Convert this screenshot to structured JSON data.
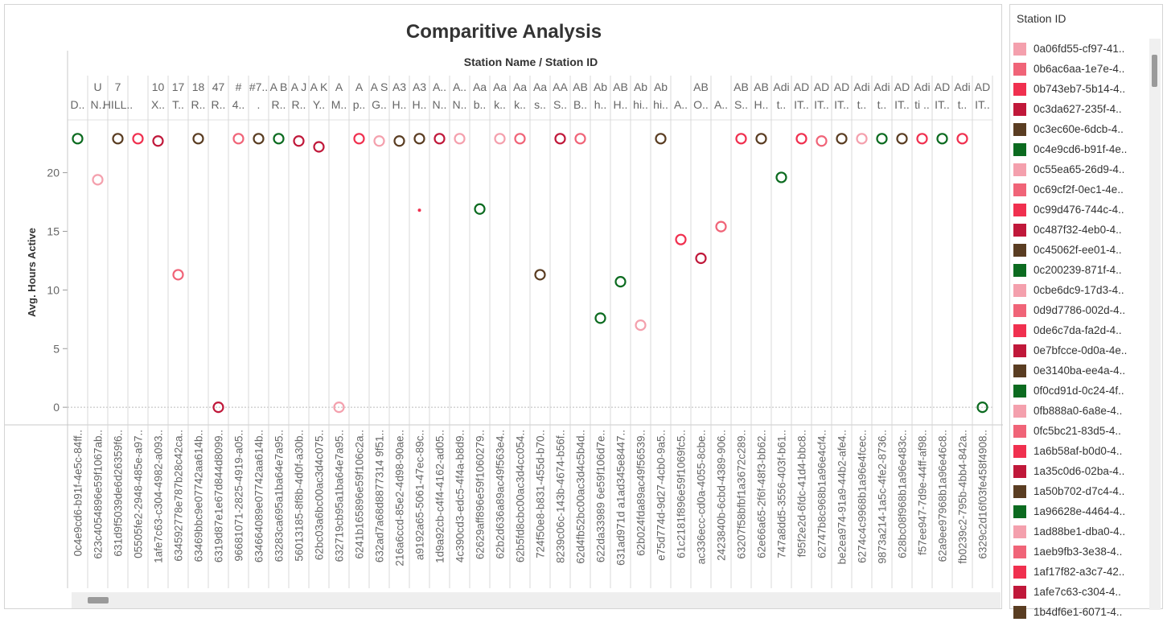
{
  "chart_data": {
    "type": "scatter",
    "title": "Comparitive Analysis",
    "header_label": "Station Name / Station ID",
    "ylabel": "Avg. Hours Active",
    "ylim": [
      -1.5,
      24.5
    ],
    "yticks": [
      0,
      5,
      10,
      15,
      20
    ],
    "columns": [
      {
        "name_top": "",
        "name_bottom": "D..",
        "station_id": "0c4e9cd6-b91f-4e5c-84ff..",
        "value": 22.9,
        "color": "#0c6b20",
        "marker": "circle"
      },
      {
        "name_top": "U",
        "name_bottom": "N..",
        "station_id": "623c4054896e59f1067ab..",
        "value": 19.4,
        "color": "#f4a0ad",
        "marker": "circle"
      },
      {
        "name_top": "7",
        "name_bottom": "HILL..",
        "station_id": "631d9f5039de6d26359f6..",
        "value": 22.9,
        "color": "#5a3d22",
        "marker": "circle"
      },
      {
        "name_top": "",
        "name_bottom": "",
        "station_id": "05505fe2-2948-485e-a97..",
        "value": 22.9,
        "color": "#f0304f",
        "marker": "circle"
      },
      {
        "name_top": "10",
        "name_bottom": "X..",
        "station_id": "1afe7c63-c304-4982-a093..",
        "value": 22.7,
        "color": "#c0183a",
        "marker": "circle"
      },
      {
        "name_top": "17",
        "name_bottom": "T..",
        "station_id": "634592778e787b28c42ca..",
        "value": 11.3,
        "color": "#f06478",
        "marker": "circle"
      },
      {
        "name_top": "18",
        "name_bottom": "R..",
        "station_id": "63469bbc9e07742aa614b..",
        "value": 22.9,
        "color": "#5a3d22",
        "marker": "circle"
      },
      {
        "name_top": "47",
        "name_bottom": "R..",
        "station_id": "6319d87e1e67d844d8099..",
        "value": 0.0,
        "color": "#c0183a",
        "marker": "circle"
      },
      {
        "name_top": "#",
        "name_bottom": "4..",
        "station_id": "96681071-2825-4919-a05..",
        "value": 22.9,
        "color": "#f06478",
        "marker": "circle"
      },
      {
        "name_top": "#7..",
        "name_bottom": ".",
        "station_id": "634664089e07742aa614b..",
        "value": 22.9,
        "color": "#5a3d22",
        "marker": "circle"
      },
      {
        "name_top": "A B",
        "name_bottom": "R..",
        "station_id": "63283ca695a1ba64e7a95..",
        "value": 22.9,
        "color": "#0c6b20",
        "marker": "circle"
      },
      {
        "name_top": "A J",
        "name_bottom": "R..",
        "station_id": "56013185-8f8b-4d0f-a30b..",
        "value": 22.7,
        "color": "#c0183a",
        "marker": "circle"
      },
      {
        "name_top": "A K",
        "name_bottom": "Y..",
        "station_id": "62bc03a6bc00ac3d4c075..",
        "value": 22.2,
        "color": "#c0183a",
        "marker": "circle"
      },
      {
        "name_top": "A",
        "name_bottom": "M..",
        "station_id": "632719cb95a1ba64e7a95..",
        "value": 0.0,
        "color": "#f4a0ad",
        "marker": "circle"
      },
      {
        "name_top": "A",
        "name_bottom": "p..",
        "station_id": "6241b165896e59f106c2a..",
        "value": 22.9,
        "color": "#f0304f",
        "marker": "circle"
      },
      {
        "name_top": "A S",
        "name_bottom": "G..",
        "station_id": "632ad7a68d8877314 9f51..",
        "value": 22.7,
        "color": "#f4a0ad",
        "marker": "circle"
      },
      {
        "name_top": "A3",
        "name_bottom": "H..",
        "station_id": "216a6ccd-85e2-4d98-90ae..",
        "value": 22.7,
        "color": "#5a3d22",
        "marker": "circle"
      },
      {
        "name_top": "A3",
        "name_bottom": "H..",
        "station_id": "a9192a65-5061-47ec-89c..",
        "value": 22.9,
        "color": "#5a3d22",
        "marker": "circle",
        "extra_dot": 16.8,
        "extra_color": "#f0304f"
      },
      {
        "name_top": "A..",
        "name_bottom": "N..",
        "station_id": "1d9a92cb-c4f4-4162-ad05..",
        "value": 22.9,
        "color": "#c0183a",
        "marker": "circle"
      },
      {
        "name_top": "A..",
        "name_bottom": "N..",
        "station_id": "4c390cd3-edc5-4f4a-b8d9..",
        "value": 22.9,
        "color": "#f4a0ad",
        "marker": "circle"
      },
      {
        "name_top": "Aa",
        "name_bottom": "b..",
        "station_id": "62629aff896e59f1060279..",
        "value": 16.9,
        "color": "#0c6b20",
        "marker": "circle"
      },
      {
        "name_top": "Aa",
        "name_bottom": "k..",
        "station_id": "62b2d636a89ac49f563e4..",
        "value": 22.9,
        "color": "#f4a0ad",
        "marker": "circle"
      },
      {
        "name_top": "Aa",
        "name_bottom": "k..",
        "station_id": "62b5fd8cbc00ac3d4cc054..",
        "value": 22.9,
        "color": "#f06478",
        "marker": "circle"
      },
      {
        "name_top": "Aa",
        "name_bottom": "s..",
        "station_id": "724f50e8-b831-455d-b70..",
        "value": 11.3,
        "color": "#5a3d22",
        "marker": "circle"
      },
      {
        "name_top": "AA",
        "name_bottom": "S..",
        "station_id": "8239c06c-143b-4674-b56f..",
        "value": 22.9,
        "color": "#c0183a",
        "marker": "circle"
      },
      {
        "name_top": "AB",
        "name_bottom": "B..",
        "station_id": "62d4fb52bc00ac3d4c5b4d..",
        "value": 22.9,
        "color": "#f06478",
        "marker": "circle"
      },
      {
        "name_top": "Ab",
        "name_bottom": "h..",
        "station_id": "622da33989 6e59f106d7e..",
        "value": 7.6,
        "color": "#0c6b20",
        "marker": "circle"
      },
      {
        "name_top": "AB",
        "name_bottom": "H..",
        "station_id": "631ad971d a1ad345e8447..",
        "value": 10.7,
        "color": "#0c6b20",
        "marker": "circle"
      },
      {
        "name_top": "Ab",
        "name_bottom": "hi..",
        "station_id": "62b024fda89ac49f56539..",
        "value": 7.0,
        "color": "#f4a0ad",
        "marker": "circle"
      },
      {
        "name_top": "Ab",
        "name_bottom": "hi..",
        "station_id": "e75d774d-9d27-4cb0-9a5..",
        "value": 22.9,
        "color": "#5a3d22",
        "marker": "circle"
      },
      {
        "name_top": "",
        "name_bottom": "A..",
        "station_id": "61c2181f896e59f1069fc5..",
        "value": 14.3,
        "color": "#f0304f",
        "marker": "circle"
      },
      {
        "name_top": "AB",
        "name_bottom": "O..",
        "station_id": "ac336ecc-cd0a-4055-8cbe..",
        "value": 12.7,
        "color": "#c0183a",
        "marker": "circle"
      },
      {
        "name_top": "",
        "name_bottom": "A..",
        "station_id": "2423840b-6cbd-4389-906..",
        "value": 15.4,
        "color": "#f06478",
        "marker": "circle"
      },
      {
        "name_top": "AB",
        "name_bottom": "S..",
        "station_id": "63207f58bfbf1a3672c289..",
        "value": 22.9,
        "color": "#f0304f",
        "marker": "circle"
      },
      {
        "name_top": "AB",
        "name_bottom": "H..",
        "station_id": "62e66a65-2f6f-48f3-bb62..",
        "value": 22.9,
        "color": "#5a3d22",
        "marker": "circle"
      },
      {
        "name_top": "Adi",
        "name_bottom": "t..",
        "station_id": "747a8dd5-3556-403f-b61..",
        "value": 19.6,
        "color": "#0c6b20",
        "marker": "circle"
      },
      {
        "name_top": "AD",
        "name_bottom": "IT..",
        "station_id": "f95f2e2d-6fdc-41d4-bbc8..",
        "value": 22.9,
        "color": "#f0304f",
        "marker": "circle"
      },
      {
        "name_top": "AD",
        "name_bottom": "IT..",
        "station_id": "62747b8c968b1a96e4cf4..",
        "value": 22.7,
        "color": "#f06478",
        "marker": "circle"
      },
      {
        "name_top": "AD",
        "name_bottom": "IT..",
        "station_id": "be2ea974-91a9-44b2-afe4..",
        "value": 22.9,
        "color": "#5a3d22",
        "marker": "circle"
      },
      {
        "name_top": "Adi",
        "name_bottom": "t..",
        "station_id": "6274c4c9968b1a96e4fcec..",
        "value": 22.9,
        "color": "#f4a0ad",
        "marker": "circle"
      },
      {
        "name_top": "Adi",
        "name_bottom": "t..",
        "station_id": "9873a214-1a5c-4fe2-8736..",
        "value": 22.9,
        "color": "#0c6b20",
        "marker": "circle"
      },
      {
        "name_top": "AD",
        "name_bottom": "IT..",
        "station_id": "628bc08f968b1a96e483c..",
        "value": 22.9,
        "color": "#5a3d22",
        "marker": "circle"
      },
      {
        "name_top": "Adi",
        "name_bottom": "ti ..",
        "station_id": "f57ee947-7d9e-44ff-af98..",
        "value": 22.9,
        "color": "#f0304f",
        "marker": "circle"
      },
      {
        "name_top": "AD",
        "name_bottom": "IT..",
        "station_id": "62a9ee97968b1a96e46c8..",
        "value": 22.9,
        "color": "#0c6b20",
        "marker": "circle"
      },
      {
        "name_top": "Adi",
        "name_bottom": "t..",
        "station_id": "fb0239c2-795b-4bb4-842a..",
        "value": 22.9,
        "color": "#f0304f",
        "marker": "circle"
      },
      {
        "name_top": "AD",
        "name_bottom": "IT..",
        "station_id": "6329c2d16f03fe458f4908..",
        "value": 0.0,
        "color": "#0c6b20",
        "marker": "circle"
      }
    ]
  },
  "legend": {
    "title": "Station ID",
    "items": [
      {
        "label": "0a06fd55-cf97-41..",
        "color": "#f4a0ad"
      },
      {
        "label": "0b6ac6aa-1e7e-4..",
        "color": "#f06478"
      },
      {
        "label": "0b743eb7-5b14-4..",
        "color": "#f0304f"
      },
      {
        "label": "0c3da627-235f-4..",
        "color": "#c0183a"
      },
      {
        "label": "0c3ec60e-6dcb-4..",
        "color": "#5a3d22"
      },
      {
        "label": "0c4e9cd6-b91f-4e..",
        "color": "#0c6b20"
      },
      {
        "label": "0c55ea65-26d9-4..",
        "color": "#f4a0ad"
      },
      {
        "label": "0c69cf2f-0ec1-4e..",
        "color": "#f06478"
      },
      {
        "label": "0c99d476-744c-4..",
        "color": "#f0304f"
      },
      {
        "label": "0c487f32-4eb0-4..",
        "color": "#c0183a"
      },
      {
        "label": "0c45062f-ee01-4..",
        "color": "#5a3d22"
      },
      {
        "label": "0c200239-871f-4..",
        "color": "#0c6b20"
      },
      {
        "label": "0cbe6dc9-17d3-4..",
        "color": "#f4a0ad"
      },
      {
        "label": "0d9d7786-002d-4..",
        "color": "#f06478"
      },
      {
        "label": "0de6c7da-fa2d-4..",
        "color": "#f0304f"
      },
      {
        "label": "0e7bfcce-0d0a-4e..",
        "color": "#c0183a"
      },
      {
        "label": "0e3140ba-ee4a-4..",
        "color": "#5a3d22"
      },
      {
        "label": "0f0cd91d-0c24-4f..",
        "color": "#0c6b20"
      },
      {
        "label": "0fb888a0-6a8e-4..",
        "color": "#f4a0ad"
      },
      {
        "label": "0fc5bc21-83d5-4..",
        "color": "#f06478"
      },
      {
        "label": "1a6b58af-b0d0-4..",
        "color": "#f0304f"
      },
      {
        "label": "1a35c0d6-02ba-4..",
        "color": "#c0183a"
      },
      {
        "label": "1a50b702-d7c4-4..",
        "color": "#5a3d22"
      },
      {
        "label": "1a96628e-4464-4..",
        "color": "#0c6b20"
      },
      {
        "label": "1ad88be1-dba0-4..",
        "color": "#f4a0ad"
      },
      {
        "label": "1aeb9fb3-3e38-4..",
        "color": "#f06478"
      },
      {
        "label": "1af17f82-a3c7-42..",
        "color": "#f0304f"
      },
      {
        "label": "1afe7c63-c304-4..",
        "color": "#c0183a"
      },
      {
        "label": "1b4df6e1-6071-4..",
        "color": "#5a3d22"
      }
    ]
  }
}
